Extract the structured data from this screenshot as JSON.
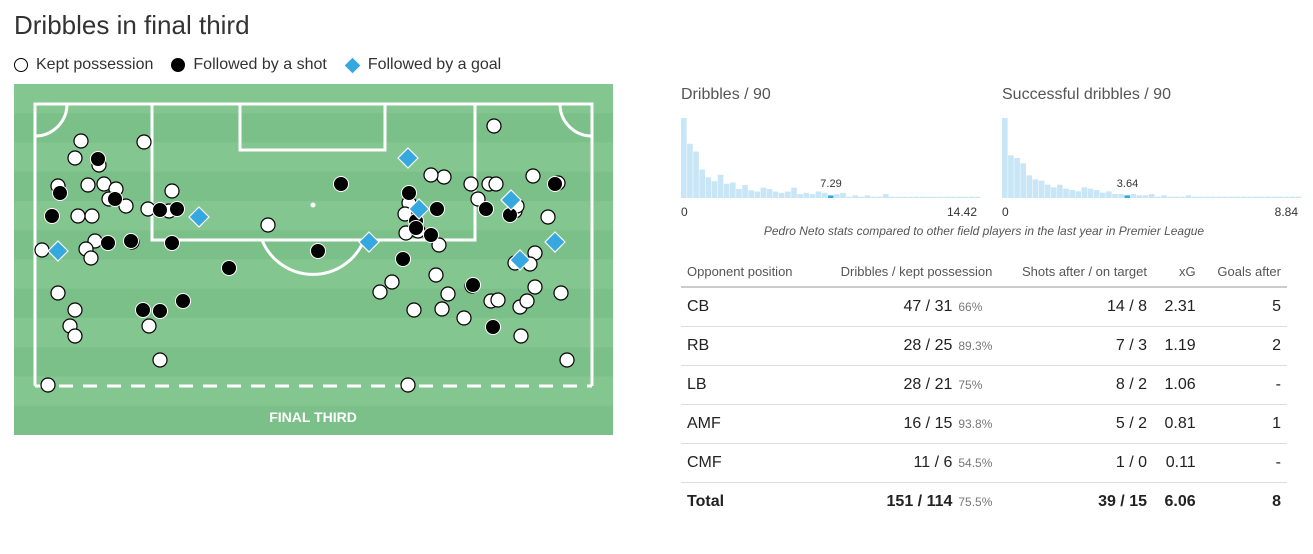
{
  "title": "Dribbles in final third",
  "legend": [
    {
      "label": "Kept possession",
      "symbol": "open-circle"
    },
    {
      "label": "Followed by a shot",
      "symbol": "black-circle"
    },
    {
      "label": "Followed by a goal",
      "symbol": "blue-diamond"
    }
  ],
  "colors": {
    "pitch_light": "#84c68f",
    "pitch_dark": "#7cc089",
    "goal_marker": "#36a8e0",
    "histogram_bar": "#c8e6f5",
    "histogram_highlight": "#36a8e0"
  },
  "pitch": {
    "label": "FINAL THIRD"
  },
  "chart_data": [
    {
      "type": "scatter",
      "title": "Dribbles in final third",
      "series": [
        {
          "name": "Kept possession",
          "marker": "open-circle",
          "points": [
            [
              81,
              141
            ],
            [
              144,
              142
            ],
            [
              75,
              158
            ],
            [
              99,
              165
            ],
            [
              58,
              186
            ],
            [
              88,
              185
            ],
            [
              104,
              184
            ],
            [
              116,
              189
            ],
            [
              126,
              206
            ],
            [
              109,
              199
            ],
            [
              92,
              216
            ],
            [
              78,
              216
            ],
            [
              95,
              241
            ],
            [
              86,
              249
            ],
            [
              91,
              258
            ],
            [
              58,
              293
            ],
            [
              75,
              310
            ],
            [
              70,
              326
            ],
            [
              75,
              336
            ],
            [
              149,
              326
            ],
            [
              160,
              360
            ],
            [
              172,
              191
            ],
            [
              169,
              211
            ],
            [
              148,
              209
            ],
            [
              132,
              242
            ],
            [
              268,
              225
            ],
            [
              409,
              203
            ],
            [
              405,
              214
            ],
            [
              406,
              233
            ],
            [
              418,
              231
            ],
            [
              444,
              177
            ],
            [
              431,
              175
            ],
            [
              439,
              245
            ],
            [
              380,
              292
            ],
            [
              392,
              282
            ],
            [
              436,
              275
            ],
            [
              414,
              310
            ],
            [
              448,
              294
            ],
            [
              472,
              286
            ],
            [
              442,
              309
            ],
            [
              464,
              318
            ],
            [
              491,
              301
            ],
            [
              498,
              300
            ],
            [
              494,
              126
            ],
            [
              471,
              184
            ],
            [
              489,
              184
            ],
            [
              496,
              184
            ],
            [
              478,
              199
            ],
            [
              515,
              211
            ],
            [
              517,
              206
            ],
            [
              533,
              176
            ],
            [
              548,
              217
            ],
            [
              535,
              253
            ],
            [
              530,
              264
            ],
            [
              515,
              263
            ],
            [
              535,
              287
            ],
            [
              520,
              307
            ],
            [
              527,
              301
            ],
            [
              521,
              336
            ],
            [
              558,
              183
            ],
            [
              561,
              293
            ],
            [
              567,
              360
            ],
            [
              42,
              250
            ],
            [
              48,
              385
            ],
            [
              408,
              385
            ]
          ]
        },
        {
          "name": "Followed by a shot",
          "marker": "black-circle",
          "points": [
            [
              98,
              159
            ],
            [
              60,
              193
            ],
            [
              52,
              216
            ],
            [
              115,
              199
            ],
            [
              108,
              243
            ],
            [
              131,
              241
            ],
            [
              177,
              209
            ],
            [
              160,
              210
            ],
            [
              172,
              243
            ],
            [
              183,
              301
            ],
            [
              143,
              310
            ],
            [
              160,
              311
            ],
            [
              229,
              268
            ],
            [
              318,
              251
            ],
            [
              341,
              184
            ],
            [
              409,
              193
            ],
            [
              416,
              221
            ],
            [
              416,
              228
            ],
            [
              431,
              235
            ],
            [
              437,
              209
            ],
            [
              486,
              209
            ],
            [
              510,
              215
            ],
            [
              493,
              327
            ],
            [
              555,
              184
            ],
            [
              473,
              285
            ],
            [
              403,
              259
            ]
          ]
        },
        {
          "name": "Followed by a goal",
          "marker": "blue-diamond",
          "points": [
            [
              58,
              251
            ],
            [
              199,
              217
            ],
            [
              408,
              158
            ],
            [
              419,
              209
            ],
            [
              369,
              242
            ],
            [
              511,
              200
            ],
            [
              520,
              260
            ],
            [
              555,
              242
            ]
          ]
        }
      ]
    },
    {
      "type": "bar",
      "title": "Dribbles / 90",
      "xlim": [
        "0",
        "14.42"
      ],
      "highlight": {
        "label": "7.29",
        "value": 7.29
      },
      "values": [
        62,
        42,
        36,
        22,
        16,
        13,
        18,
        11,
        12,
        7,
        10,
        6,
        5,
        8,
        7,
        5,
        4,
        5,
        8,
        3,
        4,
        3,
        5,
        4,
        2,
        3,
        4,
        1,
        2,
        1,
        2,
        1,
        1,
        3,
        1,
        1,
        1,
        1,
        1,
        1,
        1,
        1,
        1,
        1,
        1,
        1,
        1,
        1,
        1
      ]
    },
    {
      "type": "bar",
      "title": "Successful dribbles / 90",
      "xlim": [
        "0",
        "8.84"
      ],
      "highlight": {
        "label": "3.64",
        "value": 3.64
      },
      "values": [
        60,
        32,
        30,
        26,
        17,
        14,
        13,
        10,
        8,
        10,
        7,
        6,
        5,
        8,
        7,
        6,
        4,
        5,
        3,
        3,
        2,
        3,
        2,
        2,
        3,
        1,
        2,
        1,
        1,
        1,
        2,
        1,
        1,
        1,
        1,
        1,
        1,
        1,
        1,
        1,
        1,
        1,
        1,
        1,
        1,
        1,
        1,
        1,
        1
      ]
    },
    {
      "type": "table",
      "caption": "Pedro Neto stats compared to other field players in the last year in Premier League",
      "columns": [
        "Opponent position",
        "Dribbles / kept possession",
        "Shots after / on target",
        "xG",
        "Goals after"
      ],
      "rows": [
        {
          "pos": "CB",
          "dribbles": "47 / 31",
          "pct": "66%",
          "shots": "14 / 8",
          "xg": "2.31",
          "goals": "5"
        },
        {
          "pos": "RB",
          "dribbles": "28 / 25",
          "pct": "89.3%",
          "shots": "7 / 3",
          "xg": "1.19",
          "goals": "2"
        },
        {
          "pos": "LB",
          "dribbles": "28 / 21",
          "pct": "75%",
          "shots": "8 / 2",
          "xg": "1.06",
          "goals": "-"
        },
        {
          "pos": "AMF",
          "dribbles": "16 / 15",
          "pct": "93.8%",
          "shots": "5 / 2",
          "xg": "0.81",
          "goals": "1"
        },
        {
          "pos": "CMF",
          "dribbles": "11 / 6",
          "pct": "54.5%",
          "shots": "1 / 0",
          "xg": "0.11",
          "goals": "-"
        }
      ],
      "total": {
        "pos": "Total",
        "dribbles": "151 / 114",
        "pct": "75.5%",
        "shots": "39 / 15",
        "xg": "6.06",
        "goals": "8"
      }
    }
  ]
}
